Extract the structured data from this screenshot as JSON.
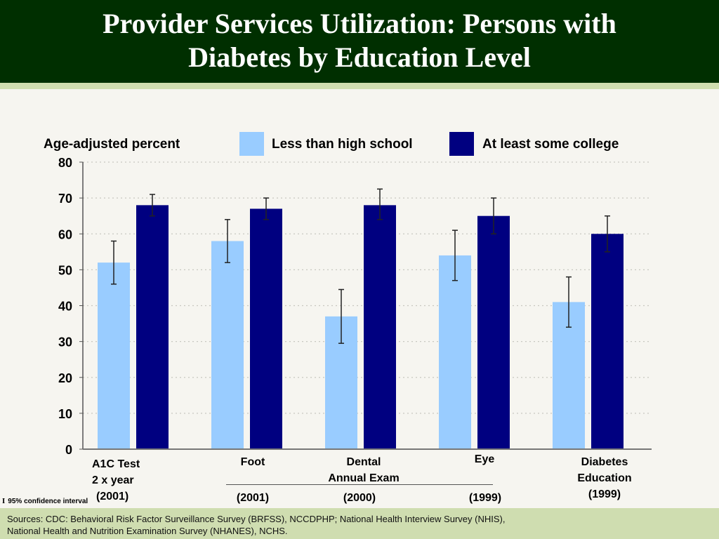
{
  "title_lines": [
    "Provider Services Utilization:  Persons with",
    "Diabetes by Education Level"
  ],
  "colors": {
    "header_bg": "#002f00",
    "footer_bg": "#cfddb0",
    "less_than_hs": "#99ccff",
    "some_college": "#000080"
  },
  "chart_data": {
    "type": "bar",
    "title": "Provider Services Utilization: Persons with Diabetes by Education Level",
    "ylabel": "Age-adjusted percent",
    "xlabel": "",
    "ylim": [
      0,
      80
    ],
    "yticks": [
      0,
      10,
      20,
      30,
      40,
      50,
      60,
      70,
      80
    ],
    "grid": true,
    "legend_position": "top",
    "categories": [
      "A1C Test 2 x year (2001)",
      "Foot (2001)",
      "Dental Annual Exam (2000)",
      "Eye (1999)",
      "Diabetes Education (1999)"
    ],
    "series": [
      {
        "name": "Less than high school",
        "color": "#99ccff",
        "values": [
          52,
          58,
          37,
          54,
          41
        ],
        "ci_low": [
          46,
          52,
          29.5,
          47,
          34
        ],
        "ci_high": [
          58,
          64,
          44.5,
          61,
          48
        ]
      },
      {
        "name": "At least some college",
        "color": "#000080",
        "values": [
          68,
          67,
          68,
          65,
          60
        ],
        "ci_low": [
          65,
          64,
          64,
          60,
          55
        ],
        "ci_high": [
          71,
          70,
          72.5,
          70,
          65
        ]
      }
    ],
    "annotation": "95% confidence interval"
  },
  "labels": {
    "ylabel": "Age-adjusted percent",
    "legend": [
      "Less than high school",
      "At least some college"
    ],
    "x": [
      {
        "lines": [
          "A1C Test",
          "2 x year",
          "(2001)"
        ]
      },
      {
        "lines": [
          "Foot",
          "",
          "(2001)"
        ]
      },
      {
        "lines": [
          "Dental",
          "Annual Exam",
          "(2000)"
        ]
      },
      {
        "lines": [
          "Eye",
          "",
          "(1999)"
        ]
      },
      {
        "lines": [
          "Diabetes",
          "Education",
          "(1999)"
        ]
      }
    ],
    "ci_glyph": "I",
    "ci_note": "95% confidence interval"
  },
  "footer": {
    "sources_line1": "Sources: CDC: Behavioral Risk Factor Surveillance Survey (BRFSS), NCCDPHP; National Health Interview Survey (NHIS),",
    "sources_line2": "National Health and Nutrition Examination Survey (NHANES), NCHS."
  }
}
